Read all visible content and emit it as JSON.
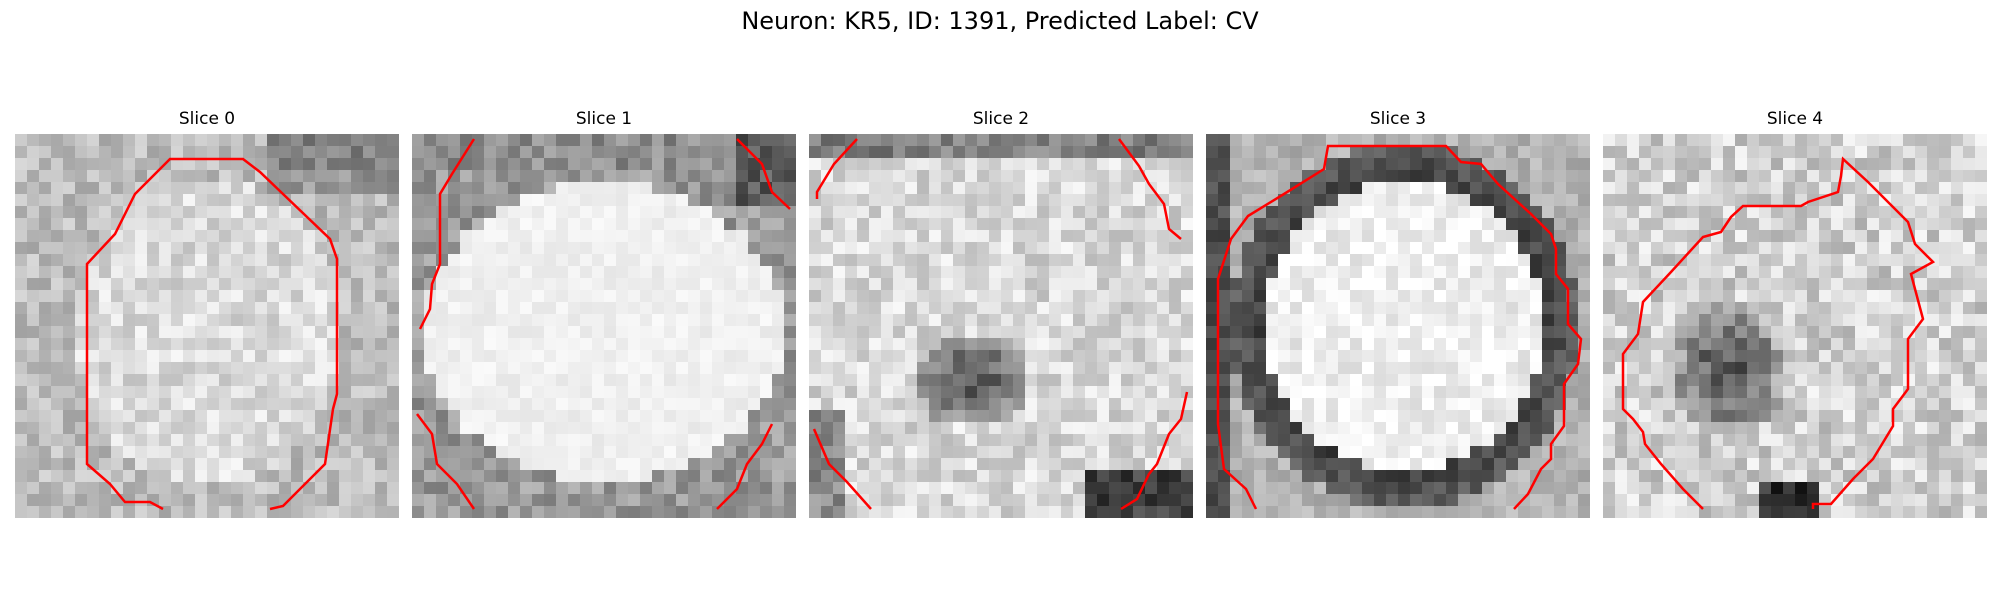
{
  "figure": {
    "title": "Neuron: KR5, ID: 1391, Predicted Label: CV"
  },
  "panels": [
    {
      "title": "Slice 0"
    },
    {
      "title": "Slice 1"
    },
    {
      "title": "Slice 2"
    },
    {
      "title": "Slice 3"
    },
    {
      "title": "Slice 4"
    }
  ],
  "style": {
    "colormap": "grayscale",
    "contour_color": "#ff0000"
  }
}
